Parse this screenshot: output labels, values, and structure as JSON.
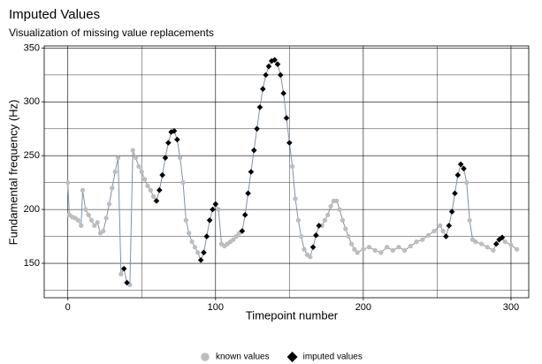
{
  "chart_data": {
    "type": "scatter",
    "title": "Imputed Values",
    "subtitle": "Visualization of missing value replacements",
    "x_label": "Timepoint number",
    "y_label": "Fundamental frequency (Hz)",
    "xlim": [
      -16,
      312
    ],
    "ylim": [
      118,
      352
    ],
    "xticks": [
      0,
      100,
      200,
      300
    ],
    "yticks": [
      150,
      200,
      250,
      300,
      350
    ],
    "xminor": [
      50,
      150,
      250
    ],
    "yminor": [
      125,
      175,
      225,
      275,
      325
    ],
    "grid": true,
    "legend": "bottom",
    "line": {
      "color": "#7f93a8",
      "x": [
        0,
        1,
        3,
        5,
        7,
        9,
        10,
        12,
        14,
        16,
        18,
        20,
        22,
        24,
        26,
        28,
        30,
        32,
        34,
        36,
        38,
        40,
        42,
        44,
        46,
        48,
        50,
        52,
        54,
        56,
        58,
        60,
        62,
        64,
        66,
        68,
        70,
        72,
        74,
        76,
        78,
        80,
        82,
        84,
        86,
        88,
        90,
        92,
        94,
        96,
        98,
        100,
        102,
        104,
        106,
        108,
        110,
        112,
        114,
        116,
        118,
        120,
        122,
        124,
        126,
        128,
        130,
        132,
        134,
        136,
        138,
        140,
        142,
        144,
        146,
        148,
        150,
        152,
        154,
        156,
        158,
        160,
        162,
        164,
        166,
        168,
        170,
        172,
        174,
        176,
        178,
        180,
        182,
        184,
        186,
        188,
        190,
        192,
        194,
        196,
        200,
        204,
        208,
        212,
        216,
        220,
        224,
        228,
        232,
        236,
        240,
        244,
        248,
        252,
        254,
        256,
        258,
        260,
        262,
        264,
        266,
        268,
        270,
        272,
        274,
        276,
        280,
        284,
        288,
        290,
        292,
        294,
        296,
        300,
        304
      ],
      "values": [
        225,
        195,
        193,
        192,
        190,
        185,
        218,
        200,
        195,
        190,
        185,
        188,
        178,
        180,
        192,
        205,
        220,
        235,
        248,
        140,
        145,
        132,
        130,
        255,
        248,
        240,
        235,
        228,
        222,
        218,
        212,
        208,
        218,
        232,
        248,
        262,
        272,
        273,
        265,
        248,
        225,
        190,
        178,
        170,
        165,
        160,
        153,
        160,
        175,
        190,
        200,
        205,
        200,
        168,
        166,
        168,
        170,
        172,
        175,
        178,
        180,
        195,
        215,
        235,
        255,
        275,
        295,
        312,
        325,
        333,
        338,
        339,
        335,
        325,
        308,
        285,
        262,
        240,
        210,
        190,
        175,
        163,
        158,
        156,
        165,
        176,
        185,
        185,
        190,
        195,
        203,
        208,
        208,
        200,
        190,
        182,
        175,
        168,
        163,
        160,
        163,
        165,
        162,
        160,
        165,
        162,
        165,
        162,
        166,
        170,
        172,
        176,
        180,
        185,
        180,
        175,
        185,
        198,
        215,
        232,
        242,
        238,
        225,
        190,
        172,
        170,
        168,
        165,
        162,
        168,
        172,
        174,
        170,
        167,
        163
      ]
    },
    "series": [
      {
        "name": "known values",
        "color": "#bdbdbd",
        "shape": "circle",
        "x": [
          0,
          1,
          3,
          5,
          7,
          9,
          10,
          12,
          14,
          16,
          18,
          20,
          22,
          24,
          26,
          28,
          30,
          32,
          34,
          36,
          42,
          44,
          46,
          48,
          50,
          52,
          54,
          56,
          58,
          76,
          78,
          80,
          82,
          84,
          86,
          88,
          102,
          104,
          106,
          108,
          110,
          112,
          114,
          116,
          152,
          154,
          156,
          158,
          160,
          162,
          164,
          172,
          174,
          176,
          178,
          180,
          182,
          184,
          186,
          188,
          190,
          192,
          194,
          196,
          200,
          204,
          208,
          212,
          216,
          220,
          224,
          228,
          232,
          236,
          240,
          244,
          248,
          252,
          254,
          270,
          272,
          274,
          276,
          280,
          284,
          288,
          296,
          300,
          304
        ],
        "values": [
          225,
          195,
          193,
          192,
          190,
          185,
          218,
          200,
          195,
          190,
          185,
          188,
          178,
          180,
          192,
          205,
          220,
          235,
          248,
          140,
          130,
          255,
          248,
          240,
          235,
          228,
          222,
          218,
          212,
          248,
          225,
          190,
          178,
          170,
          165,
          160,
          200,
          168,
          166,
          168,
          170,
          172,
          175,
          178,
          240,
          210,
          190,
          175,
          163,
          158,
          156,
          185,
          190,
          195,
          203,
          208,
          208,
          200,
          190,
          182,
          175,
          168,
          163,
          160,
          163,
          165,
          162,
          160,
          165,
          162,
          165,
          162,
          166,
          170,
          172,
          176,
          180,
          185,
          180,
          225,
          190,
          172,
          170,
          168,
          165,
          162,
          170,
          167,
          163
        ]
      },
      {
        "name": "imputed values",
        "color": "#000000",
        "shape": "diamond",
        "x": [
          38,
          40,
          60,
          62,
          64,
          66,
          68,
          70,
          72,
          74,
          90,
          92,
          94,
          96,
          98,
          100,
          118,
          120,
          122,
          124,
          126,
          128,
          130,
          132,
          134,
          136,
          138,
          140,
          142,
          144,
          146,
          148,
          150,
          166,
          168,
          170,
          256,
          258,
          260,
          262,
          264,
          266,
          268,
          290,
          292,
          294
        ],
        "values": [
          145,
          132,
          208,
          218,
          232,
          248,
          262,
          272,
          273,
          265,
          153,
          160,
          175,
          190,
          200,
          205,
          180,
          195,
          215,
          235,
          255,
          275,
          295,
          312,
          325,
          333,
          338,
          339,
          335,
          325,
          308,
          285,
          262,
          165,
          176,
          185,
          175,
          185,
          198,
          215,
          232,
          242,
          238,
          168,
          172,
          174
        ]
      }
    ]
  }
}
